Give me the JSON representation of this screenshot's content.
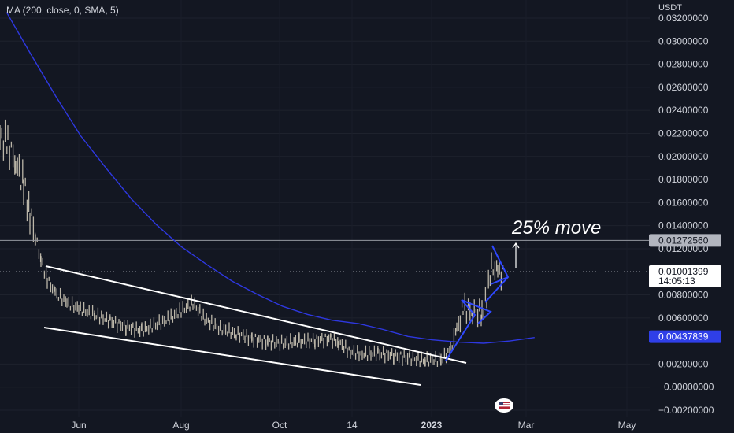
{
  "indicator_legend": "MA (200, close, 0, SMA, 5)",
  "currency": "USDT",
  "annotation": "25% move",
  "colors": {
    "background": "#131722",
    "ma_line": "#2e38e0",
    "trendlines": "#ffffff",
    "pattern": "#2f48ff",
    "candles": "#d9d2c0",
    "ma_badge": "#2f3fe8",
    "price_badge": "#ffffff",
    "resistance_badge": "#b2b5be"
  },
  "chart_data": {
    "type": "line",
    "y_range": [
      -0.003,
      0.0328
    ],
    "y_ticks": [
      "0.03200000",
      "0.03000000",
      "0.02800000",
      "0.02600000",
      "0.02400000",
      "0.02200000",
      "0.02000000",
      "0.01800000",
      "0.01600000",
      "0.01400000",
      "0.01200000",
      "0.00800000",
      "0.00600000",
      "0.00200000",
      "−0.00000000",
      "−0.00200000"
    ],
    "x_ticks": [
      "Jun",
      "Aug",
      "Oct",
      "14",
      "2023",
      "Mar",
      "May"
    ],
    "horizontal_line": 0.0127256,
    "last_price": 0.01001399,
    "price_labels": {
      "resistance": "0.01272560",
      "current_price": "0.01001399",
      "countdown": "14:05:13",
      "ma_value": "0.00437839"
    },
    "series": [
      {
        "name": "MA (200, close, 0, SMA, 5)",
        "x": [
          "2022-04-05",
          "2022-04-20",
          "2022-05-05",
          "2022-05-20",
          "2022-06-05",
          "2022-06-20",
          "2022-07-05",
          "2022-07-20",
          "2022-08-05",
          "2022-08-20",
          "2022-09-05",
          "2022-09-20",
          "2022-10-05",
          "2022-10-20",
          "2022-11-05",
          "2022-11-20",
          "2022-12-05",
          "2022-12-20",
          "2023-01-05",
          "2023-01-20",
          "2023-02-05",
          "2023-02-20"
        ],
        "values": [
          0.0325,
          0.0288,
          0.0252,
          0.0218,
          0.0189,
          0.0163,
          0.0141,
          0.0122,
          0.0106,
          0.0092,
          0.008,
          0.007,
          0.0063,
          0.0058,
          0.0055,
          0.005,
          0.0044,
          0.0041,
          0.0039,
          0.0038,
          0.004,
          0.0043
        ]
      }
    ]
  }
}
